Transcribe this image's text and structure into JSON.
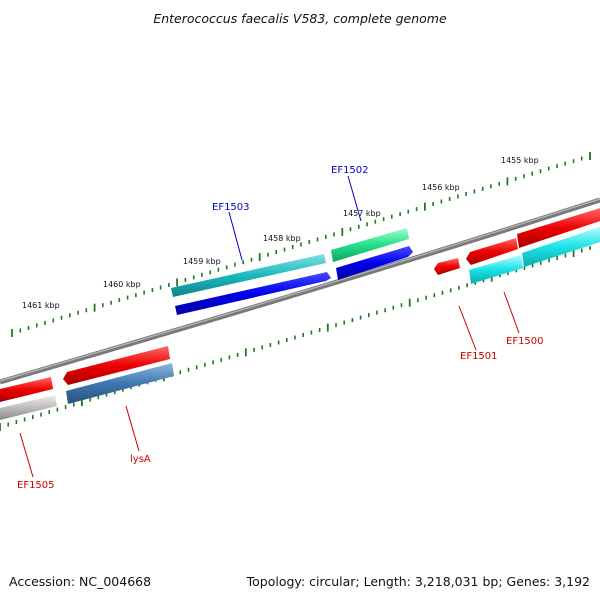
{
  "title": "Enterococcus faecalis V583, complete genome",
  "footer": {
    "accession": "Accession: NC_004668",
    "summary": "Topology: circular; Length: 3,218,031 bp; Genes: 3,192"
  },
  "scale_labels": [
    "1461 kbp",
    "1460 kbp",
    "1459 kbp",
    "1458 kbp",
    "1457 kbp",
    "1456 kbp",
    "1455 kbp"
  ],
  "genes": [
    {
      "name": "EF1505",
      "color": "#cc0000"
    },
    {
      "name": "lysA",
      "color": "#cc0000"
    },
    {
      "name": "EF1503",
      "color": "#0000cc"
    },
    {
      "name": "EF1502",
      "color": "#0000cc"
    },
    {
      "name": "EF1501",
      "color": "#cc0000"
    },
    {
      "name": "EF1500",
      "color": "#cc0000"
    }
  ],
  "colors": {
    "backbone": "#808080",
    "tick": "#1f7a1f",
    "red": "#ee0000",
    "blue": "#0000ee",
    "teal": "#1bb8bd",
    "green": "#22e08a",
    "cyan": "#19e3e6",
    "steel": "#3f77b0",
    "gray": "#bdbdbd"
  }
}
